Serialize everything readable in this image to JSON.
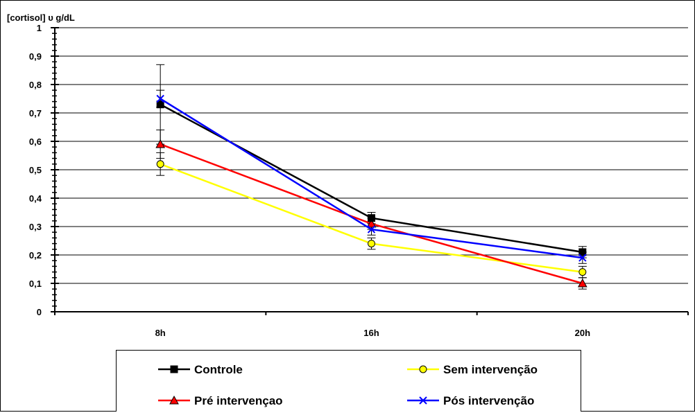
{
  "chart_data": {
    "type": "line",
    "title": "",
    "ylabel": "[cortisol]  υ g/dL",
    "xlabel": "",
    "categories": [
      "8h",
      "16h",
      "20h"
    ],
    "ylim": [
      0,
      1
    ],
    "yticks": [
      "0",
      "0,1",
      "0,2",
      "0,3",
      "0,4",
      "0,5",
      "0,6",
      "0,7",
      "0,8",
      "0,9",
      "1"
    ],
    "grid": true,
    "legend_position": "bottom",
    "series": [
      {
        "name": "Controle",
        "color": "#000000",
        "marker": "square",
        "values": [
          0.73,
          0.33,
          0.21
        ],
        "error": [
          0.14,
          0.02,
          0.02
        ]
      },
      {
        "name": "Sem intervenção",
        "color": "#ffff00",
        "marker": "circle",
        "values": [
          0.52,
          0.24,
          0.14
        ],
        "error": [
          0.04,
          0.02,
          0.02
        ]
      },
      {
        "name": "Pré intervençao",
        "color": "#ff0000",
        "marker": "triangle",
        "values": [
          0.59,
          0.31,
          0.1
        ],
        "error": [
          0.05,
          0.02,
          0.02
        ]
      },
      {
        "name": "Pós intervenção",
        "color": "#0000ff",
        "marker": "x",
        "values": [
          0.75,
          0.29,
          0.19
        ],
        "error": [
          0.03,
          0.02,
          0.02
        ]
      }
    ]
  }
}
